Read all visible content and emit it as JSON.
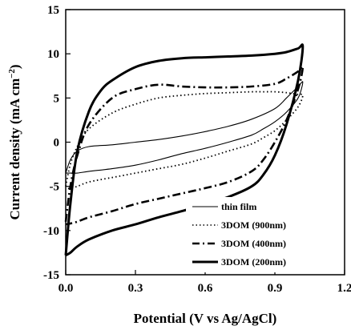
{
  "chart_data": {
    "type": "line",
    "title": "",
    "xlabel": "Potential (V vs Ag/AgCl)",
    "ylabel_main": "Current density (mA cm",
    "ylabel_sup": "−2",
    "ylabel_close": ")",
    "xlim": [
      0.0,
      1.2
    ],
    "ylim": [
      -15,
      15
    ],
    "x_ticks": [
      "0.0",
      "0.3",
      "0.6",
      "0.9",
      "1.2"
    ],
    "x_tick_values": [
      0.0,
      0.3,
      0.6,
      0.9,
      1.2
    ],
    "y_ticks": [
      "15",
      "10",
      "5",
      "0",
      "-5",
      "-10",
      "-15"
    ],
    "y_tick_values": [
      15,
      10,
      5,
      0,
      -5,
      -10,
      -15
    ],
    "legend_position": "bottom-right",
    "grid": false,
    "series": [
      {
        "name": "thin film",
        "style": "solid-thin",
        "x": [
          0.0,
          0.02,
          0.05,
          0.1,
          0.2,
          0.3,
          0.4,
          0.5,
          0.6,
          0.7,
          0.8,
          0.9,
          0.95,
          1.0,
          1.02,
          1.0,
          0.95,
          0.9,
          0.85,
          0.8,
          0.7,
          0.6,
          0.5,
          0.4,
          0.3,
          0.2,
          0.1,
          0.05,
          0.02,
          0.0
        ],
        "y": [
          -3.5,
          -2.0,
          -1.0,
          -0.5,
          -0.3,
          0.0,
          0.3,
          0.7,
          1.2,
          1.8,
          2.6,
          3.8,
          5.0,
          6.3,
          6.8,
          5.0,
          3.4,
          2.3,
          1.5,
          0.8,
          0.0,
          -0.7,
          -1.3,
          -2.0,
          -2.6,
          -3.0,
          -3.3,
          -3.5,
          -3.5,
          -3.5
        ]
      },
      {
        "name": "3DOM (900nm)",
        "style": "dotted",
        "x": [
          0.0,
          0.02,
          0.05,
          0.1,
          0.2,
          0.3,
          0.4,
          0.5,
          0.6,
          0.7,
          0.8,
          0.85,
          0.9,
          0.95,
          1.0,
          1.02,
          1.0,
          0.95,
          0.9,
          0.85,
          0.8,
          0.7,
          0.6,
          0.5,
          0.4,
          0.3,
          0.2,
          0.1,
          0.05,
          0.02,
          0.0
        ],
        "y": [
          -5.0,
          -2.5,
          -0.5,
          1.5,
          3.3,
          4.3,
          5.0,
          5.3,
          5.5,
          5.6,
          5.7,
          5.7,
          5.7,
          5.6,
          5.4,
          5.3,
          4.0,
          2.5,
          1.3,
          0.5,
          -0.2,
          -1.0,
          -1.8,
          -2.5,
          -3.0,
          -3.5,
          -4.0,
          -4.5,
          -5.0,
          -5.2,
          -5.3
        ]
      },
      {
        "name": "3DOM (400nm)",
        "style": "dash-dot",
        "x": [
          0.0,
          0.02,
          0.05,
          0.1,
          0.2,
          0.3,
          0.4,
          0.5,
          0.6,
          0.7,
          0.8,
          0.9,
          0.95,
          1.0,
          1.02,
          1.0,
          0.95,
          0.9,
          0.85,
          0.8,
          0.7,
          0.6,
          0.5,
          0.4,
          0.3,
          0.2,
          0.1,
          0.05,
          0.02,
          0.0
        ],
        "y": [
          -9.0,
          -5.0,
          -1.5,
          2.0,
          5.0,
          6.0,
          6.5,
          6.3,
          6.2,
          6.2,
          6.3,
          6.6,
          7.2,
          8.0,
          8.5,
          6.0,
          2.5,
          0.0,
          -2.0,
          -3.3,
          -4.5,
          -5.2,
          -5.8,
          -6.4,
          -7.0,
          -7.8,
          -8.5,
          -9.0,
          -9.2,
          -9.3
        ]
      },
      {
        "name": "3DOM (200nm)",
        "style": "solid-thick",
        "x": [
          0.0,
          0.02,
          0.05,
          0.1,
          0.15,
          0.2,
          0.3,
          0.4,
          0.5,
          0.6,
          0.7,
          0.8,
          0.9,
          0.95,
          1.0,
          1.02,
          1.0,
          0.95,
          0.9,
          0.85,
          0.8,
          0.7,
          0.6,
          0.5,
          0.4,
          0.3,
          0.2,
          0.1,
          0.05,
          0.02,
          0.0
        ],
        "y": [
          -12.8,
          -7.0,
          -1.0,
          3.5,
          5.8,
          7.0,
          8.5,
          9.2,
          9.5,
          9.6,
          9.7,
          9.8,
          10.0,
          10.2,
          10.6,
          10.8,
          7.0,
          2.0,
          -1.5,
          -3.7,
          -5.0,
          -6.2,
          -7.0,
          -7.8,
          -8.5,
          -9.3,
          -10.0,
          -11.0,
          -11.8,
          -12.5,
          -12.8
        ]
      }
    ]
  }
}
